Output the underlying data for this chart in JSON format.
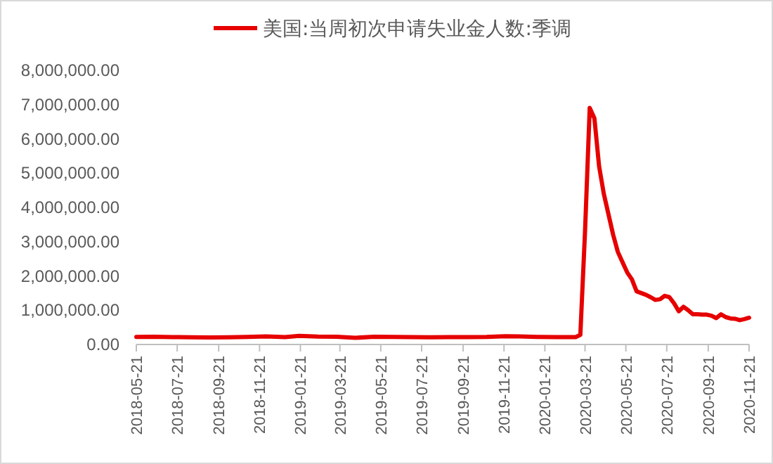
{
  "chart_data": {
    "type": "line",
    "legend": "top",
    "marker": "none",
    "line_style": "solid",
    "grid": false,
    "xlim": [
      "2018-05-21",
      "2020-11-21"
    ],
    "xticks": [
      "2018-05-21",
      "2018-07-21",
      "2018-09-21",
      "2018-11-21",
      "2019-01-21",
      "2019-03-21",
      "2019-05-21",
      "2019-07-21",
      "2019-09-21",
      "2019-11-21",
      "2020-01-21",
      "2020-03-21",
      "2020-05-21",
      "2020-07-21",
      "2020-09-21",
      "2020-11-21"
    ],
    "ylim": [
      0,
      8000000
    ],
    "yticks": [
      {
        "value": 0,
        "label": "0.00"
      },
      {
        "value": 1000000,
        "label": "1,000,000.00"
      },
      {
        "value": 2000000,
        "label": "2,000,000.00"
      },
      {
        "value": 3000000,
        "label": "3,000,000.00"
      },
      {
        "value": 4000000,
        "label": "4,000,000.00"
      },
      {
        "value": 5000000,
        "label": "5,000,000.00"
      },
      {
        "value": 6000000,
        "label": "6,000,000.00"
      },
      {
        "value": 7000000,
        "label": "7,000,000.00"
      },
      {
        "value": 8000000,
        "label": "8,000,000.00"
      }
    ],
    "series": [
      {
        "name": "美国:当周初次申请失业金人数:季调",
        "color": "#e60000",
        "x": [
          "2018-05-21",
          "2018-06-16",
          "2018-07-14",
          "2018-08-11",
          "2018-09-08",
          "2018-10-06",
          "2018-11-03",
          "2018-12-01",
          "2018-12-29",
          "2019-01-19",
          "2019-02-16",
          "2019-03-16",
          "2019-04-13",
          "2019-05-11",
          "2019-06-08",
          "2019-07-06",
          "2019-08-03",
          "2019-08-31",
          "2019-09-28",
          "2019-10-26",
          "2019-11-23",
          "2019-12-14",
          "2020-01-11",
          "2020-02-08",
          "2020-03-07",
          "2020-03-14",
          "2020-03-21",
          "2020-03-28",
          "2020-04-04",
          "2020-04-11",
          "2020-04-18",
          "2020-04-25",
          "2020-05-02",
          "2020-05-09",
          "2020-05-16",
          "2020-05-23",
          "2020-05-30",
          "2020-06-06",
          "2020-06-13",
          "2020-06-20",
          "2020-06-27",
          "2020-07-04",
          "2020-07-11",
          "2020-07-18",
          "2020-07-25",
          "2020-08-01",
          "2020-08-08",
          "2020-08-15",
          "2020-08-22",
          "2020-08-29",
          "2020-09-05",
          "2020-09-12",
          "2020-09-19",
          "2020-09-26",
          "2020-10-03",
          "2020-10-10",
          "2020-10-17",
          "2020-10-24",
          "2020-10-31",
          "2020-11-07",
          "2020-11-14",
          "2020-11-21"
        ],
        "values": [
          220000,
          225000,
          215000,
          210000,
          205000,
          210000,
          220000,
          235000,
          215000,
          250000,
          230000,
          225000,
          195000,
          225000,
          220000,
          215000,
          210000,
          215000,
          215000,
          220000,
          240000,
          235000,
          220000,
          215000,
          215000,
          280000,
          3300000,
          6900000,
          6600000,
          5200000,
          4400000,
          3800000,
          3200000,
          2700000,
          2400000,
          2100000,
          1900000,
          1550000,
          1500000,
          1450000,
          1380000,
          1300000,
          1320000,
          1420000,
          1380000,
          1200000,
          970000,
          1100000,
          1000000,
          880000,
          880000,
          870000,
          870000,
          840000,
          770000,
          880000,
          800000,
          760000,
          750000,
          710000,
          740000,
          780000
        ]
      }
    ]
  }
}
